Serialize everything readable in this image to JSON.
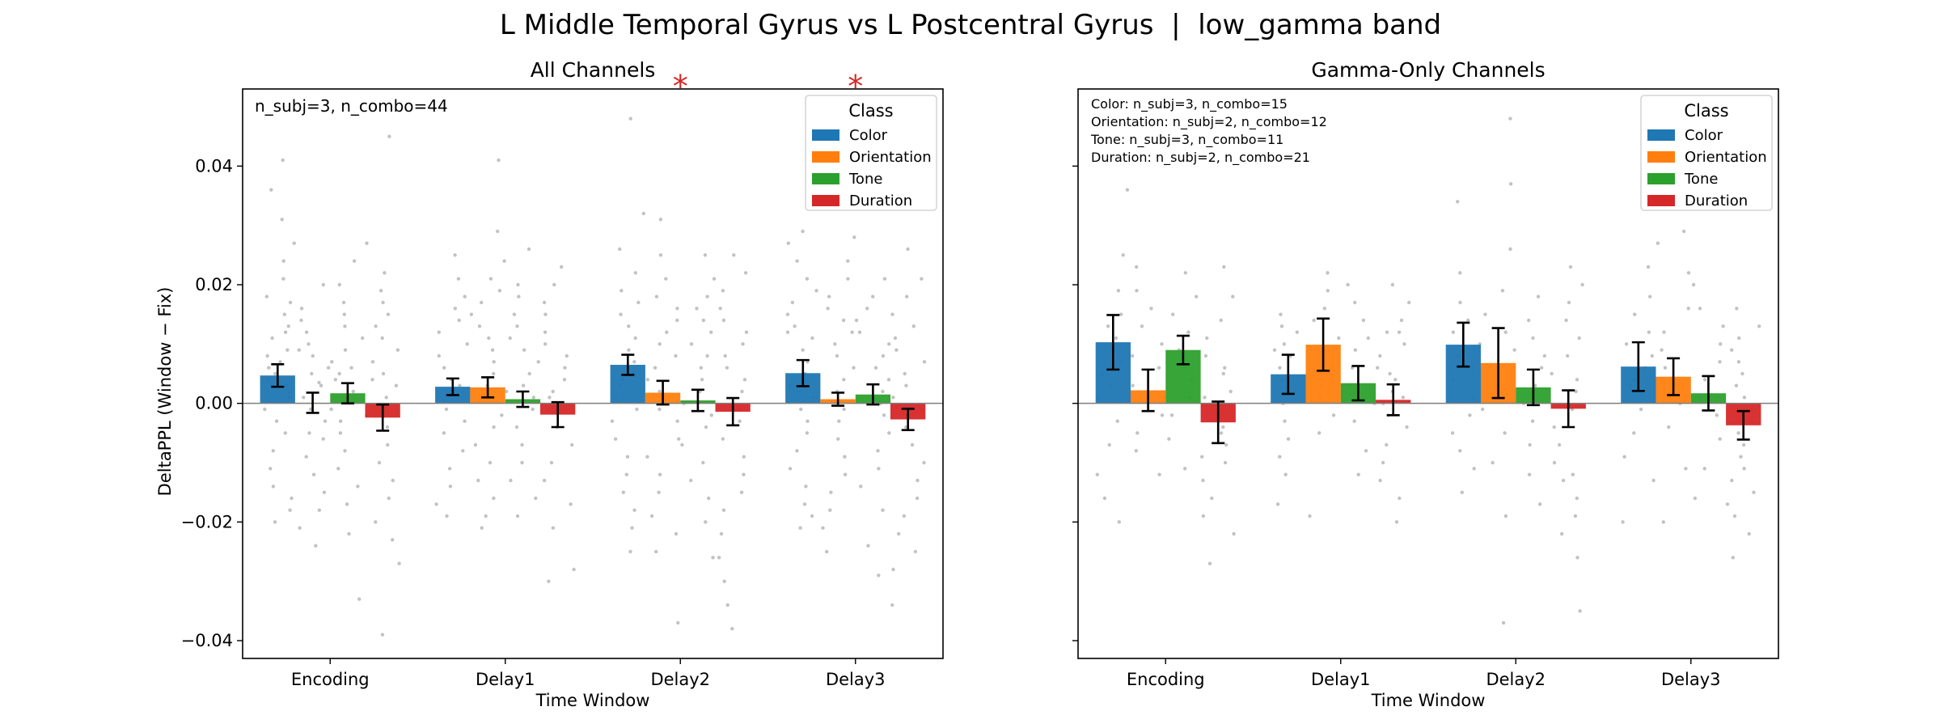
{
  "title": "L Middle Temporal Gyrus vs L Postcentral Gyrus  |  low_gamma band",
  "colors": {
    "Color": "#1f77b4",
    "Orientation": "#ff7f0e",
    "Tone": "#2ca02c",
    "Duration": "#d62728"
  },
  "chart_data": [
    {
      "type": "bar",
      "title": "All Channels",
      "xlabel": "Time Window",
      "ylabel": "DeltaPPL (Window − Fix)",
      "categories": [
        "Encoding",
        "Delay1",
        "Delay2",
        "Delay3"
      ],
      "ylim": [
        -0.043,
        0.053
      ],
      "yticks": [
        -0.04,
        -0.02,
        0.0,
        0.02,
        0.04
      ],
      "ytick_labels": [
        "−0.04",
        "−0.02",
        "0.00",
        "0.02",
        "0.04"
      ],
      "legend_title": "Class",
      "legend_position": "upper right",
      "annotations": [
        "n_subj=3, n_combo=44"
      ],
      "significance": [
        "",
        "",
        "*",
        "*"
      ],
      "series": [
        {
          "name": "Color",
          "values": [
            0.0047,
            0.0028,
            0.0065,
            0.0051
          ],
          "errors": [
            0.0019,
            0.0014,
            0.0017,
            0.0022
          ]
        },
        {
          "name": "Orientation",
          "values": [
            0.0001,
            0.0027,
            0.0018,
            0.0007
          ],
          "errors": [
            0.0017,
            0.0017,
            0.002,
            0.0011
          ]
        },
        {
          "name": "Tone",
          "values": [
            0.0017,
            0.0007,
            0.0005,
            0.0015
          ],
          "errors": [
            0.0017,
            0.0013,
            0.0018,
            0.0017
          ]
        },
        {
          "name": "Duration",
          "values": [
            -0.0024,
            -0.0019,
            -0.0014,
            -0.0027
          ],
          "errors": [
            0.0022,
            0.0021,
            0.0023,
            0.0018
          ]
        }
      ],
      "points": [
        [
          [
            0.041,
            0.036,
            0.031,
            0.027,
            0.024,
            0.021,
            0.018,
            0.017,
            0.015,
            0.013,
            0.012,
            0.011,
            0.009,
            0.008,
            0.007,
            0.006,
            0.004,
            0.003,
            0.002,
            0.001,
            -0.001,
            -0.003,
            -0.005,
            -0.008,
            -0.011,
            -0.014,
            -0.016,
            -0.018,
            -0.02,
            0.005
          ],
          [
            0.02,
            0.016,
            0.014,
            0.012,
            0.01,
            0.008,
            0.006,
            0.005,
            0.003,
            0.001,
            -0.001,
            -0.003,
            -0.006,
            -0.009,
            -0.012,
            -0.015,
            -0.018,
            -0.021,
            -0.024,
            0.009,
            0.0035,
            -0.005
          ],
          [
            0.024,
            0.02,
            0.017,
            0.015,
            0.013,
            0.011,
            0.009,
            0.007,
            0.005,
            0.004,
            0.002,
            -0.001,
            -0.003,
            -0.005,
            -0.008,
            -0.011,
            -0.014,
            -0.017,
            -0.022,
            -0.033,
            0.006
          ],
          [
            0.045,
            0.027,
            0.022,
            0.019,
            0.017,
            0.015,
            0.013,
            0.011,
            0.009,
            0.007,
            0.005,
            0.003,
            0.001,
            -0.002,
            -0.004,
            -0.007,
            -0.01,
            -0.013,
            -0.016,
            -0.02,
            -0.023,
            -0.027,
            -0.039,
            0.004
          ]
        ],
        [
          [
            0.025,
            0.021,
            0.018,
            0.016,
            0.014,
            0.012,
            0.01,
            0.008,
            0.006,
            0.004,
            0.002,
            -0.001,
            -0.003,
            -0.005,
            -0.008,
            -0.011,
            -0.014,
            -0.017,
            -0.019,
            0.003
          ],
          [
            0.041,
            0.029,
            0.024,
            0.021,
            0.019,
            0.017,
            0.015,
            0.013,
            0.011,
            0.009,
            0.007,
            0.005,
            0.003,
            0.001,
            -0.002,
            -0.004,
            -0.007,
            -0.01,
            -0.013,
            -0.016,
            -0.019,
            -0.021
          ],
          [
            0.026,
            0.02,
            0.018,
            0.015,
            0.013,
            0.011,
            0.009,
            0.007,
            0.005,
            0.003,
            0.001,
            -0.001,
            -0.004,
            -0.007,
            -0.01,
            -0.013,
            -0.016,
            -0.019,
            0.002
          ],
          [
            0.023,
            0.02,
            0.017,
            0.015,
            0.012,
            0.01,
            0.008,
            0.006,
            0.004,
            0.002,
            -0.001,
            -0.004,
            -0.007,
            -0.01,
            -0.013,
            -0.017,
            -0.021,
            -0.028,
            -0.03,
            0.001
          ]
        ],
        [
          [
            0.048,
            0.032,
            0.026,
            0.022,
            0.019,
            0.017,
            0.015,
            0.013,
            0.011,
            0.009,
            0.007,
            0.005,
            0.003,
            0.001,
            -0.001,
            -0.003,
            -0.006,
            -0.009,
            -0.012,
            -0.015,
            -0.018,
            -0.021,
            -0.025,
            0.004
          ],
          [
            0.031,
            0.025,
            0.021,
            0.018,
            0.016,
            0.014,
            0.012,
            0.01,
            0.008,
            0.006,
            0.004,
            0.002,
            -0.001,
            -0.003,
            -0.006,
            -0.009,
            -0.012,
            -0.015,
            -0.019,
            -0.022,
            -0.025,
            -0.037
          ],
          [
            0.025,
            0.021,
            0.018,
            0.016,
            0.014,
            0.012,
            0.01,
            0.008,
            0.006,
            0.004,
            0.002,
            0.0,
            -0.002,
            -0.004,
            -0.007,
            -0.01,
            -0.013,
            -0.016,
            -0.02,
            -0.026
          ],
          [
            0.025,
            0.022,
            0.019,
            0.016,
            0.014,
            0.012,
            0.01,
            0.008,
            0.006,
            0.004,
            0.002,
            -0.001,
            -0.003,
            -0.006,
            -0.009,
            -0.012,
            -0.015,
            -0.018,
            -0.022,
            -0.026,
            -0.03,
            -0.034,
            -0.038
          ]
        ],
        [
          [
            0.029,
            0.027,
            0.024,
            0.021,
            0.019,
            0.017,
            0.015,
            0.013,
            0.011,
            0.009,
            0.007,
            0.005,
            0.003,
            0.001,
            -0.001,
            -0.003,
            -0.005,
            -0.008,
            -0.011,
            -0.014,
            -0.017,
            -0.019,
            -0.021,
            0.012
          ],
          [
            0.028,
            0.024,
            0.021,
            0.018,
            0.016,
            0.014,
            0.012,
            0.01,
            0.008,
            0.006,
            0.004,
            0.002,
            -0.001,
            -0.003,
            -0.006,
            -0.009,
            -0.012,
            -0.015,
            -0.018,
            -0.021,
            -0.025
          ],
          [
            0.021,
            0.018,
            0.016,
            0.014,
            0.012,
            0.01,
            0.008,
            0.006,
            0.004,
            0.002,
            0.0,
            -0.002,
            -0.005,
            -0.008,
            -0.011,
            -0.014,
            -0.018,
            -0.024,
            -0.029
          ],
          [
            0.026,
            0.021,
            0.018,
            0.015,
            0.013,
            0.011,
            0.009,
            0.007,
            0.005,
            0.003,
            0.001,
            -0.001,
            -0.004,
            -0.007,
            -0.01,
            -0.013,
            -0.016,
            -0.019,
            -0.022,
            -0.025,
            -0.028,
            -0.034
          ]
        ]
      ]
    },
    {
      "type": "bar",
      "title": "Gamma-Only Channels",
      "xlabel": "Time Window",
      "ylabel": "",
      "categories": [
        "Encoding",
        "Delay1",
        "Delay2",
        "Delay3"
      ],
      "ylim": [
        -0.043,
        0.053
      ],
      "yticks": [
        -0.04,
        -0.02,
        0.0,
        0.02,
        0.04
      ],
      "ytick_labels": [
        "",
        "",
        "",
        "",
        ""
      ],
      "legend_title": "Class",
      "legend_position": "upper right",
      "annotations": [
        "Color: n_subj=3, n_combo=15",
        "Orientation: n_subj=2, n_combo=12",
        "Tone: n_subj=3, n_combo=11",
        "Duration: n_subj=2, n_combo=21"
      ],
      "significance": [
        "",
        "",
        "",
        ""
      ],
      "series": [
        {
          "name": "Color",
          "values": [
            0.0103,
            0.0049,
            0.0099,
            0.0062
          ],
          "errors": [
            0.0046,
            0.0033,
            0.0037,
            0.0041
          ]
        },
        {
          "name": "Orientation",
          "values": [
            0.0022,
            0.0099,
            0.0068,
            0.0045
          ],
          "errors": [
            0.0035,
            0.0044,
            0.0059,
            0.0031
          ]
        },
        {
          "name": "Tone",
          "values": [
            0.009,
            0.0034,
            0.0027,
            0.0017
          ],
          "errors": [
            0.0024,
            0.0029,
            0.003,
            0.0029
          ]
        },
        {
          "name": "Duration",
          "values": [
            -0.0032,
            0.0006,
            -0.0009,
            -0.0037
          ],
          "errors": [
            0.0035,
            0.0026,
            0.0031,
            0.0024
          ]
        }
      ],
      "points": [
        [
          [
            0.036,
            0.025,
            0.019,
            0.015,
            0.013,
            0.011,
            0.009,
            0.007,
            0.005,
            0.003,
            0.001,
            -0.003,
            -0.007,
            -0.012,
            -0.016,
            -0.02
          ],
          [
            0.023,
            0.019,
            0.016,
            0.013,
            0.01,
            0.008,
            0.006,
            0.003,
            0.001,
            -0.002,
            -0.005,
            -0.008,
            -0.012
          ],
          [
            0.022,
            0.018,
            0.015,
            0.012,
            0.009,
            0.006,
            0.004,
            0.001,
            -0.002,
            -0.006,
            -0.011
          ],
          [
            0.023,
            0.018,
            0.014,
            0.011,
            0.008,
            0.005,
            0.002,
            -0.001,
            -0.004,
            -0.007,
            -0.01,
            -0.013,
            -0.016,
            -0.019,
            -0.022,
            -0.027,
            0.006,
            -0.005,
            -0.009,
            0.001
          ]
        ],
        [
          [
            0.015,
            0.012,
            0.01,
            0.008,
            0.006,
            0.004,
            0.002,
            0.0,
            -0.003,
            -0.006,
            -0.009,
            -0.012,
            -0.017,
            0.013,
            0.009
          ],
          [
            0.022,
            0.019,
            0.016,
            0.014,
            0.011,
            0.009,
            0.006,
            0.003,
            0.001,
            -0.002,
            -0.005,
            -0.019
          ],
          [
            0.02,
            0.017,
            0.014,
            0.011,
            0.009,
            0.006,
            0.003,
            0.0,
            -0.003,
            -0.008,
            -0.012
          ],
          [
            0.02,
            0.017,
            0.014,
            0.012,
            0.01,
            0.008,
            0.006,
            0.004,
            0.002,
            0.0,
            -0.002,
            -0.004,
            -0.007,
            -0.01,
            -0.013,
            -0.016,
            -0.02,
            0.012,
            0.005,
            0.001
          ]
        ],
        [
          [
            0.034,
            0.022,
            0.017,
            0.014,
            0.012,
            0.01,
            0.008,
            0.006,
            0.004,
            0.001,
            -0.002,
            -0.005,
            -0.008,
            -0.011,
            -0.015
          ],
          [
            0.048,
            0.037,
            0.026,
            0.019,
            0.015,
            0.012,
            0.009,
            0.006,
            0.003,
            -0.001,
            -0.005,
            -0.01,
            -0.019,
            -0.037
          ],
          [
            0.018,
            0.014,
            0.011,
            0.008,
            0.006,
            0.003,
            0.0,
            -0.003,
            -0.007,
            -0.012,
            -0.017
          ],
          [
            0.023,
            0.02,
            0.017,
            0.014,
            0.011,
            0.008,
            0.005,
            0.002,
            -0.001,
            -0.004,
            -0.007,
            -0.01,
            -0.013,
            -0.016,
            -0.019,
            -0.022,
            -0.026,
            -0.035,
            0.004,
            -0.012
          ]
        ],
        [
          [
            0.023,
            0.018,
            0.015,
            0.012,
            0.01,
            0.008,
            0.006,
            0.004,
            0.002,
            -0.001,
            -0.005,
            -0.009,
            -0.013,
            -0.02,
            0.003
          ],
          [
            0.029,
            0.027,
            0.022,
            0.016,
            0.012,
            0.009,
            0.006,
            0.003,
            0.0,
            -0.004,
            -0.011,
            -0.02
          ],
          [
            0.02,
            0.016,
            0.013,
            0.01,
            0.007,
            0.004,
            0.001,
            -0.002,
            -0.006,
            -0.011,
            -0.016
          ],
          [
            0.016,
            0.013,
            0.011,
            0.009,
            0.007,
            0.005,
            0.003,
            0.001,
            -0.001,
            -0.003,
            -0.005,
            -0.007,
            -0.009,
            -0.011,
            -0.013,
            -0.015,
            -0.017,
            -0.019,
            -0.022,
            -0.026,
            -0.003
          ]
        ]
      ]
    }
  ]
}
